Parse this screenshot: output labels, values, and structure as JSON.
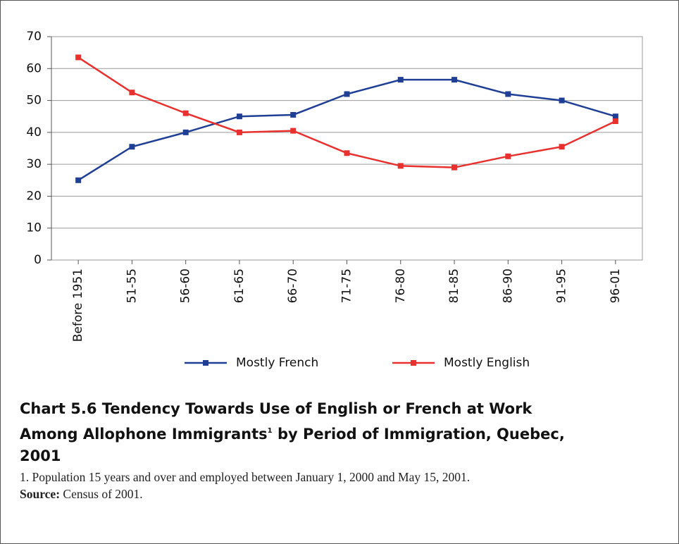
{
  "chart_data": {
    "type": "line",
    "title": "Chart 5.6  Tendency Towards Use of English or French at Work Among Allophone Immigrants",
    "title_footnote_mark": "1",
    "title_continued": "by Period of Immigration, Quebec, 2001",
    "footnote": "1. Population 15 years and over and employed between January 1, 2000 and May 15, 2001.",
    "source_label": "Source:",
    "source": "Census of 2001.",
    "categories": [
      "Before 1951",
      "51-55",
      "56-60",
      "61-65",
      "66-70",
      "71-75",
      "76-80",
      "81-85",
      "86-90",
      "91-95",
      "96-01"
    ],
    "series": [
      {
        "name": "Mostly French",
        "color": "#1f3f94",
        "values": [
          25,
          35.5,
          40,
          45,
          45.5,
          52,
          56.5,
          56.5,
          52,
          50,
          45
        ]
      },
      {
        "name": "Mostly English",
        "color": "#e8312f",
        "values": [
          63.5,
          52.5,
          46,
          40,
          40.5,
          33.5,
          29.5,
          29,
          32.5,
          35.5,
          43.5
        ]
      }
    ],
    "ylim": [
      0,
      70
    ],
    "yticks": [
      0,
      10,
      20,
      30,
      40,
      50,
      60,
      70
    ],
    "grid": true,
    "legend": "bottom"
  }
}
